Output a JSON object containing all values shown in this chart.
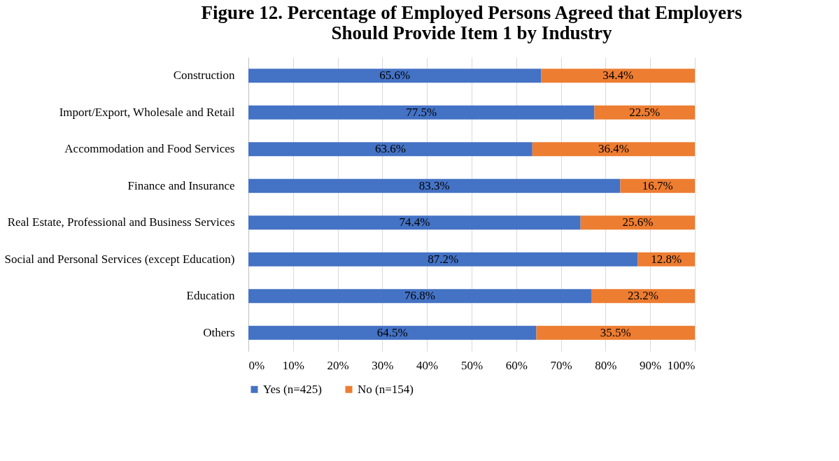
{
  "chart_data": {
    "type": "bar",
    "orientation": "horizontal",
    "stacked": true,
    "title": "Figure 12. Percentage of Employed Persons Agreed that Employers\nShould Provide Item 1 by Industry",
    "categories": [
      "Construction",
      "Import/Export, Wholesale and Retail",
      "Accommodation and Food Services",
      "Finance and Insurance",
      "Real Estate, Professional and Business Services",
      "Social and Personal Services (except Education)",
      "Education",
      "Others"
    ],
    "series": [
      {
        "name": "Yes (n=425)",
        "color": "#4472c4",
        "values": [
          65.6,
          77.5,
          63.6,
          83.3,
          74.4,
          87.2,
          76.8,
          64.5
        ],
        "value_labels": [
          "65.6%",
          "77.5%",
          "63.6%",
          "83.3%",
          "74.4%",
          "87.2%",
          "76.8%",
          "64.5%"
        ]
      },
      {
        "name": "No (n=154)",
        "color": "#ed7d31",
        "values": [
          34.4,
          22.5,
          36.4,
          16.7,
          25.6,
          12.8,
          23.2,
          35.5
        ],
        "value_labels": [
          "34.4%",
          "22.5%",
          "36.4%",
          "16.7%",
          "25.6%",
          "12.8%",
          "23.2%",
          "35.5%"
        ]
      }
    ],
    "xlim": [
      0,
      100
    ],
    "xticks": [
      {
        "value": 0,
        "label": "0%"
      },
      {
        "value": 10,
        "label": "10%"
      },
      {
        "value": 20,
        "label": "20%"
      },
      {
        "value": 30,
        "label": "30%"
      },
      {
        "value": 40,
        "label": "40%"
      },
      {
        "value": 50,
        "label": "50%"
      },
      {
        "value": 60,
        "label": "60%"
      },
      {
        "value": 70,
        "label": "70%"
      },
      {
        "value": 80,
        "label": "80%"
      },
      {
        "value": 90,
        "label": "90%"
      },
      {
        "value": 100,
        "label": "100%"
      }
    ],
    "grid": "x",
    "legend": "bottom"
  }
}
